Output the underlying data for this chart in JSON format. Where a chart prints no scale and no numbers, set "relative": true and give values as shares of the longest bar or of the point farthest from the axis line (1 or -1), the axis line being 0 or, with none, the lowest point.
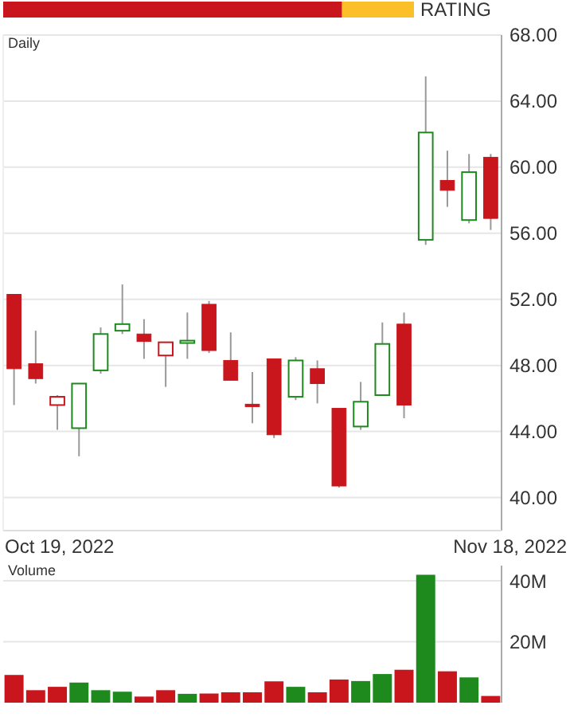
{
  "chart_data": [
    {
      "type": "bar",
      "orientation": "horizontal",
      "stacked": true,
      "relative": true,
      "ylabel": "RATING",
      "categories": [
        null
      ],
      "tick_labels": false,
      "series": [
        {
          "color": "#c8161c",
          "values": [
            0.825
          ]
        },
        {
          "color": "#fbbf2a",
          "values": [
            0.175
          ]
        }
      ]
    },
    {
      "type": "candlestick",
      "title": "Daily",
      "annotations": [
        "Oct 19, 2022",
        "Nov 18, 2022"
      ],
      "categories": [
        null,
        null,
        null,
        null,
        null,
        null,
        null,
        null,
        null,
        null,
        null,
        null,
        null,
        null,
        null,
        null,
        null,
        null,
        null,
        null,
        null,
        null,
        null
      ],
      "ylim": [
        38,
        68
      ],
      "yticks": [
        {
          "value": 40,
          "label": "40.00"
        },
        {
          "value": 44,
          "label": "44.00"
        },
        {
          "value": 48,
          "label": "48.00"
        },
        {
          "value": 52,
          "label": "52.00"
        },
        {
          "value": 56,
          "label": "56.00"
        },
        {
          "value": 60,
          "label": "60.00"
        },
        {
          "value": 64,
          "label": "64.00"
        },
        {
          "value": 68,
          "label": "68.00"
        }
      ],
      "grid": "y",
      "colors": [
        "#c8161c",
        "#c8161c",
        "#c8161c",
        "#1e8a1e",
        "#1e8a1e",
        "#1e8a1e",
        "#c8161c",
        "#c8161c",
        "#1e8a1e",
        "#c8161c",
        "#c8161c",
        "#c8161c",
        "#c8161c",
        "#1e8a1e",
        "#c8161c",
        "#c8161c",
        "#1e8a1e",
        "#1e8a1e",
        "#c8161c",
        "#1e8a1e",
        "#c8161c",
        "#1e8a1e",
        "#c8161c"
      ],
      "ohlc": [
        [
          52.3,
          52.3,
          45.6,
          47.8
        ],
        [
          48.1,
          50.1,
          46.9,
          47.2
        ],
        [
          45.6,
          46.2,
          44.1,
          46.1
        ],
        [
          44.2,
          46.9,
          42.5,
          46.9
        ],
        [
          47.7,
          50.3,
          47.5,
          49.9
        ],
        [
          50.1,
          52.9,
          49.9,
          50.5
        ],
        [
          49.9,
          50.8,
          48.4,
          49.45
        ],
        [
          48.6,
          49.4,
          46.7,
          49.4
        ],
        [
          49.45,
          51.2,
          48.4,
          49.5
        ],
        [
          51.7,
          51.9,
          48.75,
          48.9
        ],
        [
          48.3,
          50.0,
          47.1,
          47.1
        ],
        [
          45.65,
          47.6,
          44.5,
          45.6
        ],
        [
          48.4,
          48.4,
          43.6,
          43.8
        ],
        [
          46.1,
          48.5,
          45.9,
          48.3
        ],
        [
          47.8,
          48.3,
          45.7,
          46.9
        ],
        [
          45.4,
          45.4,
          40.6,
          40.7
        ],
        [
          44.3,
          47.0,
          44.1,
          45.8
        ],
        [
          46.2,
          50.6,
          46.2,
          49.3
        ],
        [
          50.5,
          51.2,
          44.8,
          45.6
        ],
        [
          55.6,
          65.5,
          55.3,
          62.1
        ],
        [
          59.2,
          61.0,
          57.6,
          58.6
        ],
        [
          56.8,
          60.8,
          56.6,
          59.7
        ],
        [
          60.6,
          60.8,
          56.2,
          56.9
        ]
      ]
    },
    {
      "type": "bar",
      "title": "Volume",
      "categories": [
        null,
        null,
        null,
        null,
        null,
        null,
        null,
        null,
        null,
        null,
        null,
        null,
        null,
        null,
        null,
        null,
        null,
        null,
        null,
        null,
        null,
        null,
        null
      ],
      "ylim": [
        0,
        45
      ],
      "yticks": [
        {
          "value": 20,
          "label": "20M"
        },
        {
          "value": 40,
          "label": "40M"
        }
      ],
      "grid": "y",
      "tick_labels": "y",
      "colors": [
        "#c8161c",
        "#c8161c",
        "#c8161c",
        "#1e8a1e",
        "#1e8a1e",
        "#1e8a1e",
        "#c8161c",
        "#c8161c",
        "#1e8a1e",
        "#c8161c",
        "#c8161c",
        "#c8161c",
        "#c8161c",
        "#1e8a1e",
        "#c8161c",
        "#c8161c",
        "#1e8a1e",
        "#1e8a1e",
        "#c8161c",
        "#1e8a1e",
        "#c8161c",
        "#1e8a1e",
        "#c8161c"
      ],
      "values": [
        9.1,
        4.1,
        5.2,
        6.6,
        4.1,
        3.6,
        2.0,
        4.1,
        2.9,
        3.0,
        3.4,
        3.4,
        7.0,
        5.2,
        3.4,
        7.6,
        7.1,
        9.4,
        10.8,
        42.0,
        10.3,
        8.3,
        2.2
      ]
    }
  ]
}
